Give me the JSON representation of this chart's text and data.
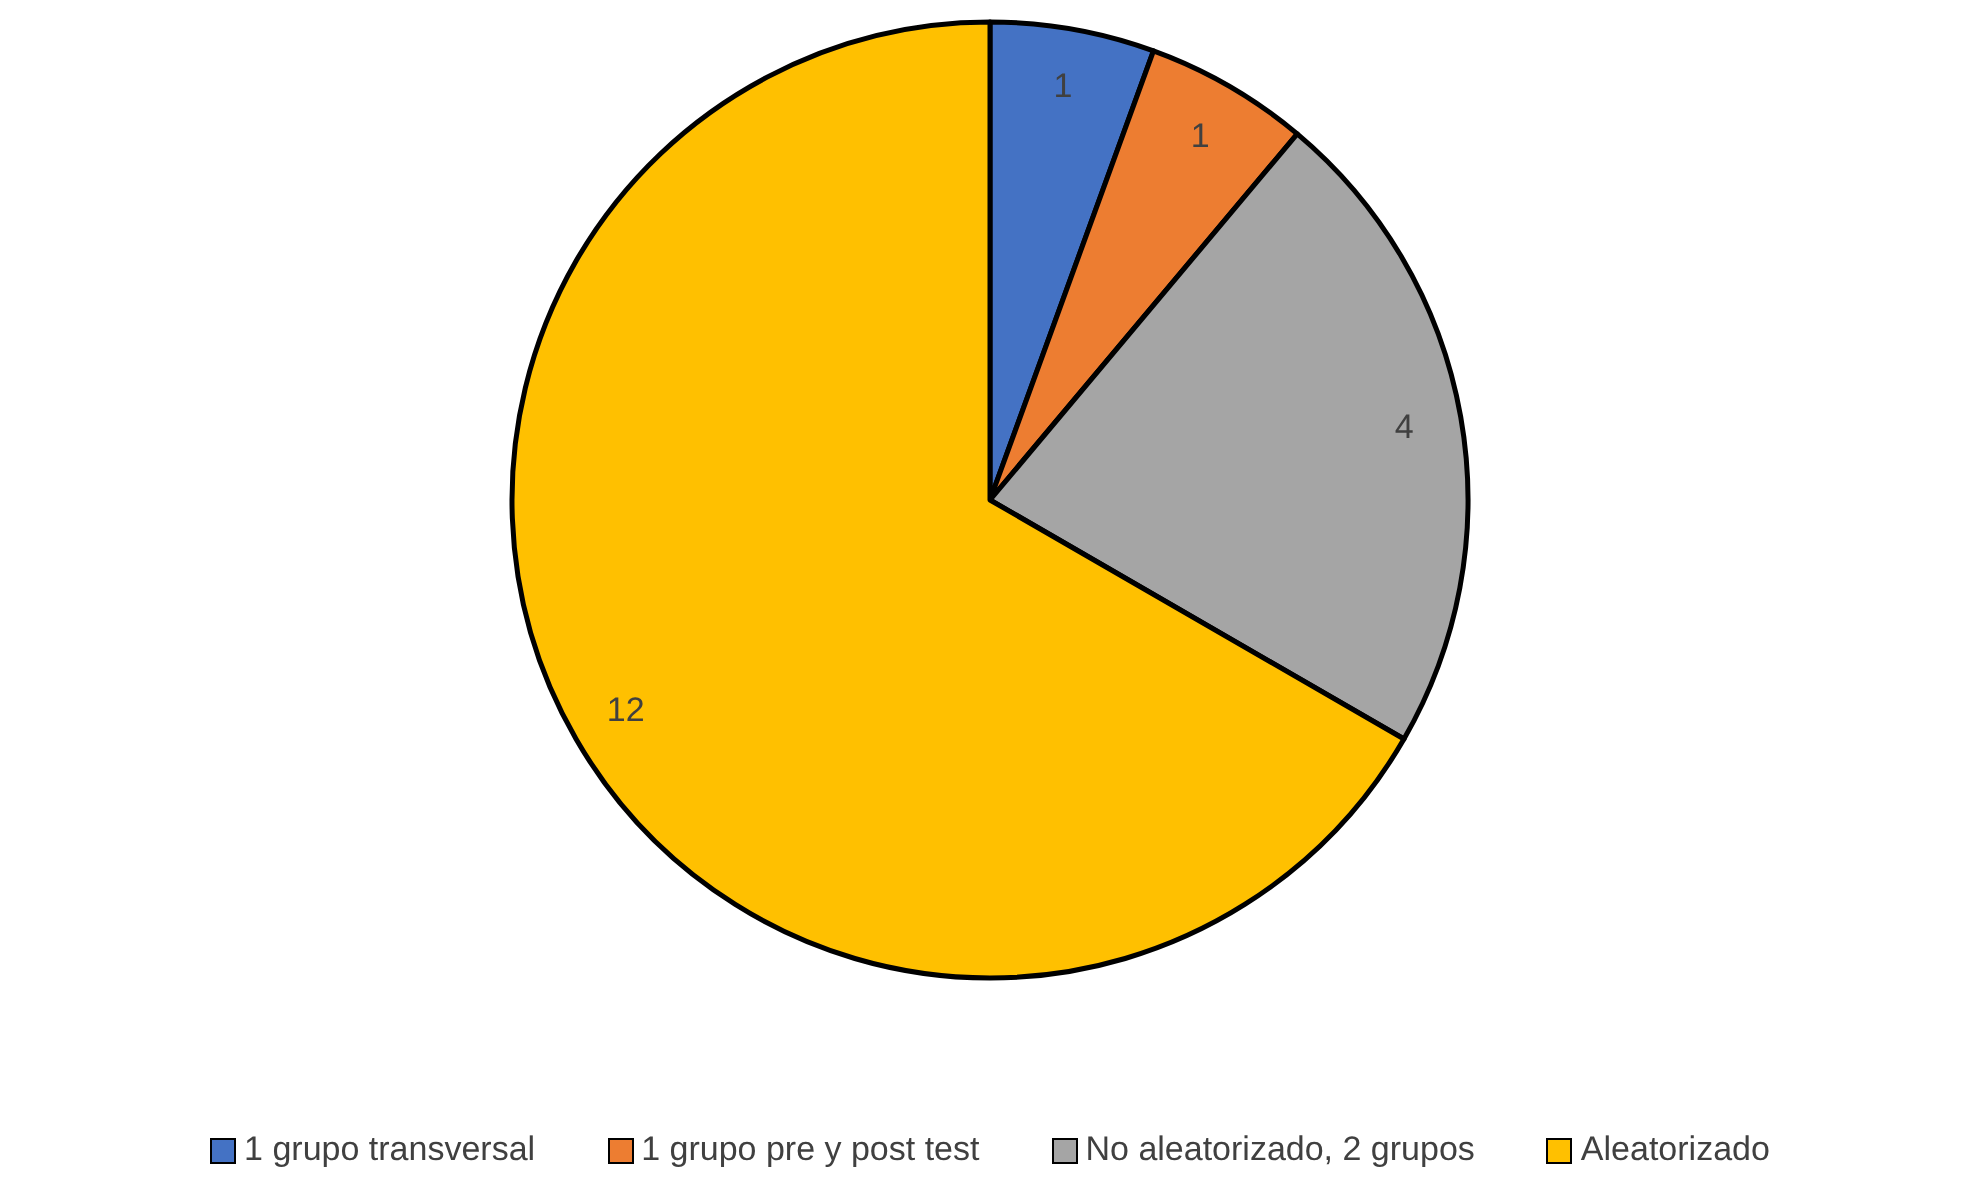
{
  "chart_data": {
    "type": "pie",
    "categories": [
      "1 grupo transversal",
      "1 grupo pre y post test",
      "No aleatorizado, 2 grupos",
      "Aleatorizado"
    ],
    "values": [
      1,
      1,
      4,
      12
    ],
    "colors": [
      "#4472c4",
      "#ed7d31",
      "#a5a5a5",
      "#ffc000"
    ],
    "data_labels": true,
    "legend": "bottom"
  }
}
